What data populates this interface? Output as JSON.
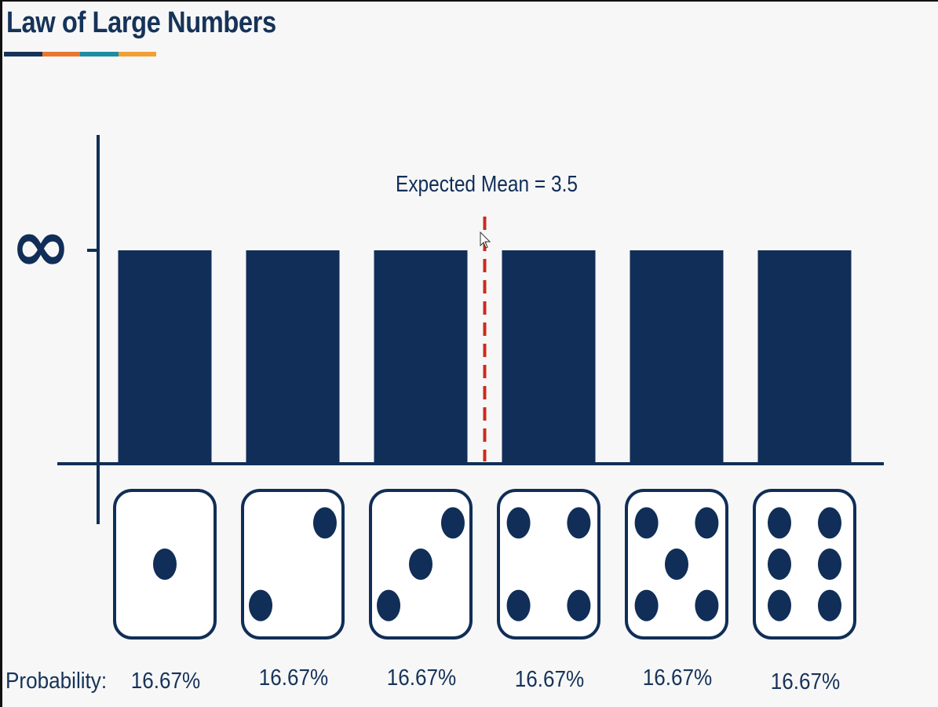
{
  "header": {
    "title": "Law of Large Numbers",
    "underline_colors": [
      "#163359",
      "#e8772e",
      "#1b8ea3",
      "#f0a035"
    ]
  },
  "colors": {
    "bar": "#102e57",
    "axis": "#102e57",
    "mean_line": "#cc2a1e",
    "background": "#f7f7f7"
  },
  "chart_data": {
    "type": "bar",
    "categories": [
      "1",
      "2",
      "3",
      "4",
      "5",
      "6"
    ],
    "values": [
      1,
      1,
      1,
      1,
      1,
      1
    ],
    "ylim": [
      0,
      1
    ],
    "y_tick_label": "∞",
    "mean_line": {
      "x": 3.5,
      "label": "Expected Mean = 3.5",
      "style": "dashed"
    },
    "category_icons": [
      "die-1",
      "die-2",
      "die-3",
      "die-4",
      "die-5",
      "die-6"
    ],
    "probability_label": "Probability:",
    "probabilities": [
      "16.67%",
      "16.67%",
      "16.67%",
      "16.67%",
      "16.67%",
      "16.67%"
    ]
  }
}
